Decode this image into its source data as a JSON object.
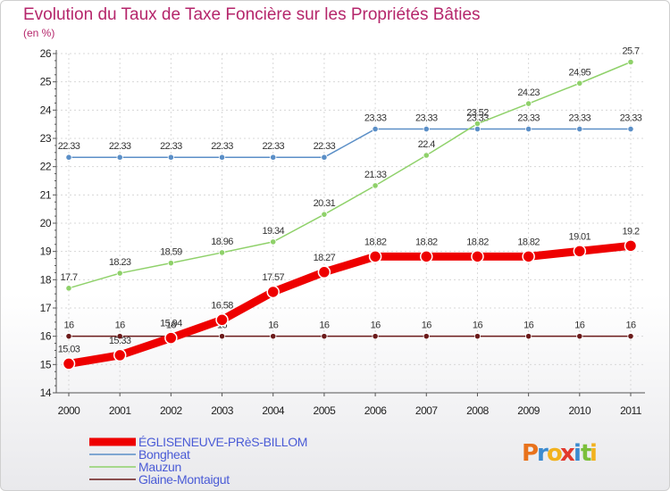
{
  "title": "Evolution du Taux de Taxe Foncière sur les Propriétés Bâties",
  "unit": "(en %)",
  "brand": "Proxiti",
  "chart_data": {
    "type": "line",
    "x": [
      2000,
      2001,
      2002,
      2003,
      2004,
      2005,
      2006,
      2007,
      2008,
      2009,
      2010,
      2011
    ],
    "xlabels": [
      "2000",
      "2001",
      "2002",
      "2003",
      "2004",
      "2005",
      "2006",
      "2007",
      "2008",
      "2009",
      "2010",
      "2011"
    ],
    "ylim": [
      14,
      26
    ],
    "yticks": [
      14,
      15,
      16,
      17,
      18,
      19,
      20,
      21,
      22,
      23,
      24,
      25,
      26
    ],
    "ytick_labels": [
      "14",
      "15",
      "16",
      "17",
      "18",
      "19",
      "20",
      "21",
      "22",
      "23",
      "24",
      "25",
      "26"
    ],
    "grid": true,
    "legend_position": "bottom-left",
    "series": [
      {
        "name": "Glaine-Montaigut",
        "color": "#6b1a1a",
        "values": [
          16,
          16,
          16,
          16,
          16,
          16,
          16,
          16,
          16,
          16,
          16,
          16
        ],
        "labels": [
          "16",
          "16",
          "16",
          "16",
          "16",
          "16",
          "16",
          "16",
          "16",
          "16",
          "16",
          "16"
        ]
      },
      {
        "name": "Bongheat",
        "color": "#5b8fc7",
        "values": [
          22.33,
          22.33,
          22.33,
          22.33,
          22.33,
          22.33,
          23.33,
          23.33,
          23.33,
          23.33,
          23.33,
          23.33
        ],
        "labels": [
          "22.33",
          "22.33",
          "22.33",
          "22.33",
          "22.33",
          "22.33",
          "23.33",
          "23.33",
          "23.33",
          "23.33",
          "23.33",
          "23.33"
        ]
      },
      {
        "name": "Mauzun",
        "color": "#8fd16a",
        "values": [
          17.7,
          18.23,
          18.59,
          18.96,
          19.34,
          20.31,
          21.33,
          22.4,
          23.52,
          24.23,
          24.95,
          25.7
        ],
        "labels": [
          "17.7",
          "18.23",
          "18.59",
          "18.96",
          "19.34",
          "20.31",
          "21.33",
          "22.4",
          "23.52",
          "24.23",
          "24.95",
          "25.7"
        ]
      },
      {
        "name": "ÉGLISENEUVE-PRèS-BILLOM",
        "color": "#ee0000",
        "values": [
          15.03,
          15.33,
          15.94,
          16.58,
          17.57,
          18.27,
          18.82,
          18.82,
          18.82,
          18.82,
          19.01,
          19.2
        ],
        "labels": [
          "15.03",
          "15.33",
          "15.94",
          "16.58",
          "17.57",
          "18.27",
          "18.82",
          "18.82",
          "18.82",
          "18.82",
          "19.01",
          "19.2"
        ]
      }
    ]
  },
  "legend": [
    {
      "name": "ÉGLISENEUVE-PRèS-BILLOM",
      "color": "#ee0000"
    },
    {
      "name": "Bongheat",
      "color": "#5b8fc7"
    },
    {
      "name": "Mauzun",
      "color": "#8fd16a"
    },
    {
      "name": "Glaine-Montaigut",
      "color": "#6b1a1a"
    }
  ]
}
